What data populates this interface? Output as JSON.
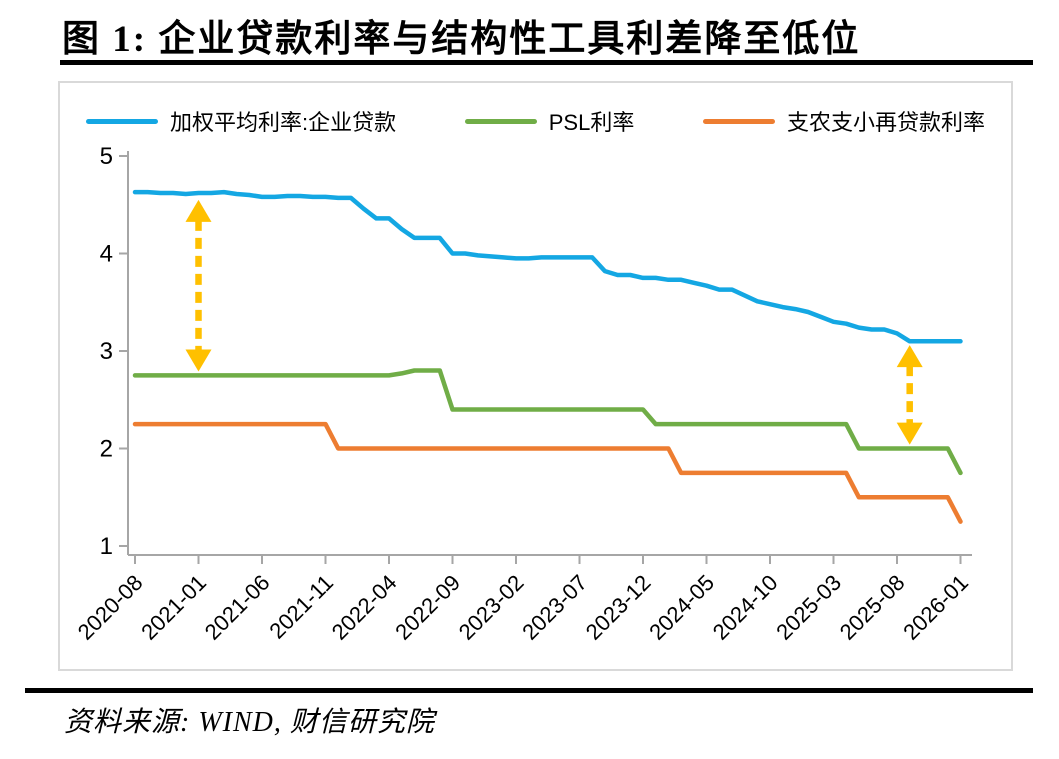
{
  "page": {
    "title": "图 1:  企业贷款利率与结构性工具利差降至低位",
    "source": "资料来源:  WIND, 财信研究院"
  },
  "colors": {
    "axis": "#A6A6A6",
    "tick_label": "#000000",
    "frame_border": "#D9D9D9",
    "divider": "#000000",
    "arrow": "#FFC000",
    "series_blue": "#14A7E3",
    "series_green": "#70AD47",
    "series_orange": "#ED7D31"
  },
  "chart_data": {
    "type": "line",
    "title": "企业贷款利率与结构性工具利差降至低位",
    "xlabel": "",
    "ylabel": "",
    "grid": false,
    "legend_position": "top",
    "y_ticks": [
      5,
      4,
      3,
      2,
      1
    ],
    "ylim": [
      0.9,
      5.15
    ],
    "x": [
      "2020-08",
      "2020-09",
      "2020-10",
      "2020-11",
      "2020-12",
      "2021-01",
      "2021-02",
      "2021-03",
      "2021-04",
      "2021-05",
      "2021-06",
      "2021-07",
      "2021-08",
      "2021-09",
      "2021-10",
      "2021-11",
      "2021-12",
      "2022-01",
      "2022-02",
      "2022-03",
      "2022-04",
      "2022-05",
      "2022-06",
      "2022-07",
      "2022-08",
      "2022-09",
      "2022-10",
      "2022-11",
      "2022-12",
      "2023-01",
      "2023-02",
      "2023-03",
      "2023-04",
      "2023-05",
      "2023-06",
      "2023-07",
      "2023-08",
      "2023-09",
      "2023-10",
      "2023-11",
      "2023-12",
      "2024-01",
      "2024-02",
      "2024-03",
      "2024-04",
      "2024-05",
      "2024-06",
      "2024-07",
      "2024-08",
      "2024-09",
      "2024-10",
      "2024-11",
      "2024-12",
      "2025-01",
      "2025-02",
      "2025-03",
      "2025-04",
      "2025-05",
      "2025-06",
      "2025-07",
      "2025-08",
      "2025-09",
      "2025-10",
      "2025-11",
      "2025-12",
      "2026-01"
    ],
    "x_tick_labels": [
      "2020-08",
      "2021-01",
      "2021-06",
      "2021-11",
      "2022-04",
      "2022-09",
      "2023-02",
      "2023-07",
      "2023-12",
      "2024-05",
      "2024-10",
      "2025-03",
      "2025-08",
      "2026-01"
    ],
    "series": [
      {
        "name": "加权平均利率:企业贷款",
        "color": "#14A7E3",
        "values": [
          4.63,
          4.63,
          4.62,
          4.62,
          4.61,
          4.62,
          4.62,
          4.63,
          4.61,
          4.6,
          4.58,
          4.58,
          4.59,
          4.59,
          4.58,
          4.58,
          4.57,
          4.57,
          4.46,
          4.36,
          4.36,
          4.25,
          4.16,
          4.16,
          4.16,
          4.0,
          4.0,
          3.98,
          3.97,
          3.96,
          3.95,
          3.95,
          3.96,
          3.96,
          3.96,
          3.96,
          3.96,
          3.82,
          3.78,
          3.78,
          3.75,
          3.75,
          3.73,
          3.73,
          3.7,
          3.67,
          3.63,
          3.63,
          3.57,
          3.51,
          3.48,
          3.45,
          3.43,
          3.4,
          3.35,
          3.3,
          3.28,
          3.24,
          3.22,
          3.22,
          3.18,
          3.1,
          3.1,
          3.1,
          3.1,
          3.1
        ]
      },
      {
        "name": "PSL利率",
        "color": "#70AD47",
        "values": [
          2.75,
          2.75,
          2.75,
          2.75,
          2.75,
          2.75,
          2.75,
          2.75,
          2.75,
          2.75,
          2.75,
          2.75,
          2.75,
          2.75,
          2.75,
          2.75,
          2.75,
          2.75,
          2.75,
          2.75,
          2.75,
          2.77,
          2.8,
          2.8,
          2.8,
          2.4,
          2.4,
          2.4,
          2.4,
          2.4,
          2.4,
          2.4,
          2.4,
          2.4,
          2.4,
          2.4,
          2.4,
          2.4,
          2.4,
          2.4,
          2.4,
          2.25,
          2.25,
          2.25,
          2.25,
          2.25,
          2.25,
          2.25,
          2.25,
          2.25,
          2.25,
          2.25,
          2.25,
          2.25,
          2.25,
          2.25,
          2.25,
          2.0,
          2.0,
          2.0,
          2.0,
          2.0,
          2.0,
          2.0,
          2.0,
          1.75
        ]
      },
      {
        "name": "支农支小再贷款利率",
        "color": "#ED7D31",
        "values": [
          2.25,
          2.25,
          2.25,
          2.25,
          2.25,
          2.25,
          2.25,
          2.25,
          2.25,
          2.25,
          2.25,
          2.25,
          2.25,
          2.25,
          2.25,
          2.25,
          2.0,
          2.0,
          2.0,
          2.0,
          2.0,
          2.0,
          2.0,
          2.0,
          2.0,
          2.0,
          2.0,
          2.0,
          2.0,
          2.0,
          2.0,
          2.0,
          2.0,
          2.0,
          2.0,
          2.0,
          2.0,
          2.0,
          2.0,
          2.0,
          2.0,
          2.0,
          2.0,
          1.75,
          1.75,
          1.75,
          1.75,
          1.75,
          1.75,
          1.75,
          1.75,
          1.75,
          1.75,
          1.75,
          1.75,
          1.75,
          1.75,
          1.5,
          1.5,
          1.5,
          1.5,
          1.5,
          1.5,
          1.5,
          1.5,
          1.25
        ]
      }
    ],
    "annotations": [
      {
        "type": "double-arrow",
        "x": "2021-01",
        "from": 4.55,
        "to": 2.79,
        "color": "#FFC000"
      },
      {
        "type": "double-arrow",
        "x": "2025-09",
        "from": 3.06,
        "to": 2.04,
        "color": "#FFC000"
      }
    ]
  }
}
